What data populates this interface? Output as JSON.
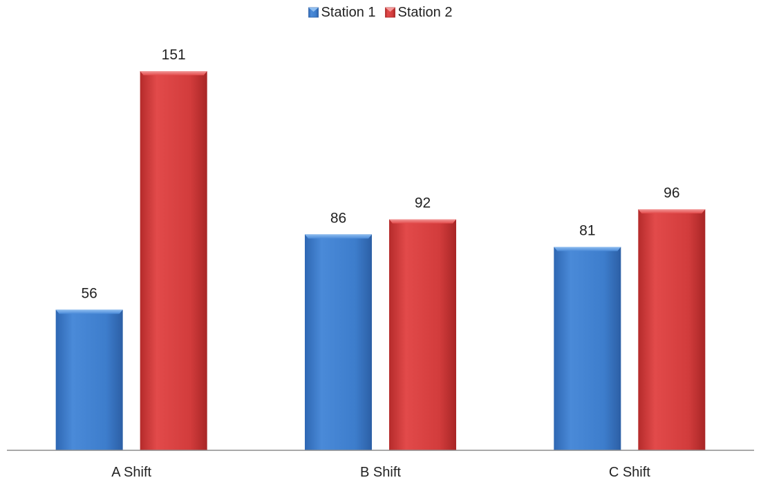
{
  "chart_data": {
    "type": "bar",
    "categories": [
      "A Shift",
      "B Shift",
      "C Shift"
    ],
    "series": [
      {
        "name": "Station 1",
        "values": [
          56,
          86,
          81
        ],
        "color": "#3f7fcf"
      },
      {
        "name": "Station 2",
        "values": [
          151,
          92,
          96
        ],
        "color": "#d63c3c"
      }
    ],
    "ylim": [
      0,
      160
    ],
    "grid": false,
    "legend_position": "top-center",
    "data_labels": true
  }
}
